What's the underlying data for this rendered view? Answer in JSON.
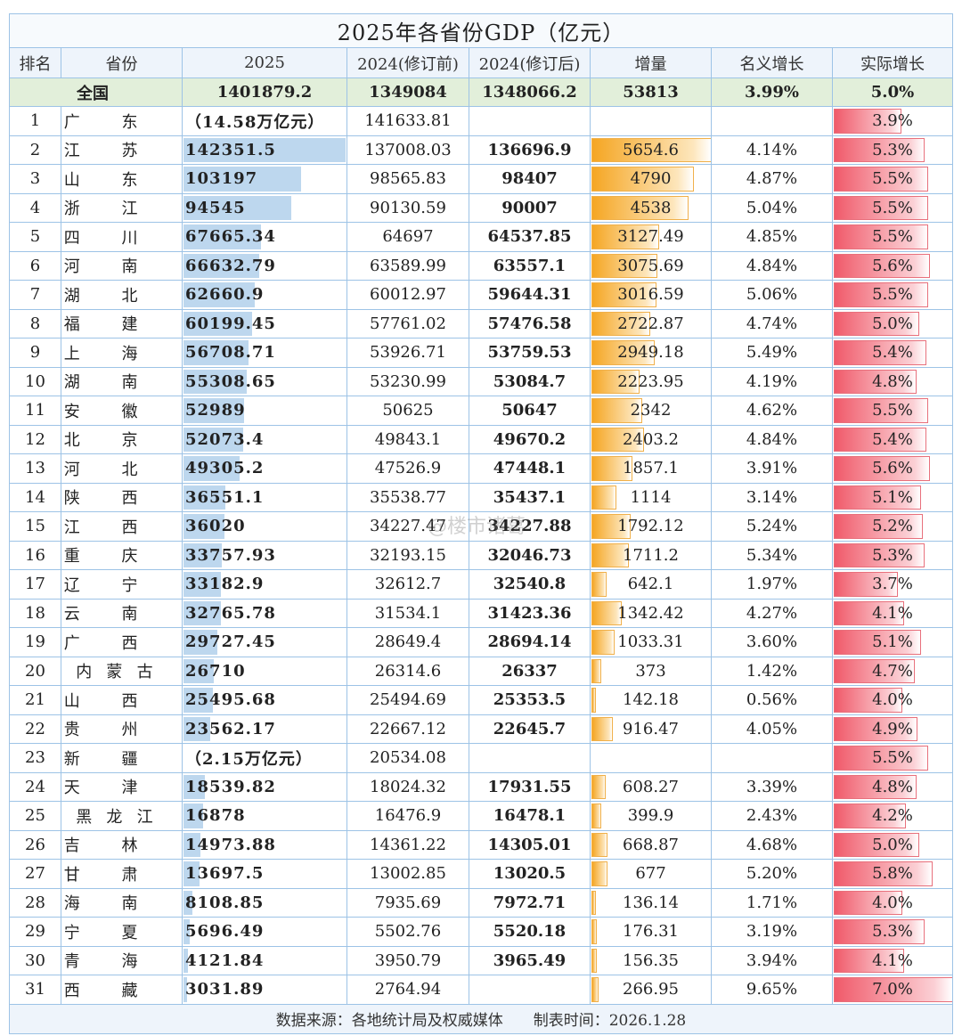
{
  "title": "2025年各省份GDP（亿元）",
  "header": [
    "排名",
    "省份",
    "2025",
    "2024(修订前)",
    "2024(修订后)",
    "增量",
    "名义增长",
    "实际增长"
  ],
  "national": [
    "全国",
    "1401879.2",
    "1349084",
    "1348066.2",
    "53813",
    "3.99%",
    "5.0%"
  ],
  "rows": [
    [
      "1",
      "广东",
      "（14.58万亿元）",
      "141633.81",
      null,
      null,
      null,
      "3.9%"
    ],
    [
      "2",
      "江苏",
      "142351.5",
      "137008.03",
      "136696.9",
      "5654.6",
      "4.14%",
      "5.3%"
    ],
    [
      "3",
      "山东",
      "103197",
      "98565.83",
      "98407",
      "4790",
      "4.87%",
      "5.5%"
    ],
    [
      "4",
      "浙江",
      "94545",
      "90130.59",
      "90007",
      "4538",
      "5.04%",
      "5.5%"
    ],
    [
      "5",
      "四川",
      "67665.34",
      "64697",
      "64537.85",
      "3127.49",
      "4.85%",
      "5.5%"
    ],
    [
      "6",
      "河南",
      "66632.79",
      "63589.99",
      "63557.1",
      "3075.69",
      "4.84%",
      "5.6%"
    ],
    [
      "7",
      "湖北",
      "62660.9",
      "60012.97",
      "59644.31",
      "3016.59",
      "5.06%",
      "5.5%"
    ],
    [
      "8",
      "福建",
      "60199.45",
      "57761.02",
      "57476.58",
      "2722.87",
      "4.74%",
      "5.0%"
    ],
    [
      "9",
      "上海",
      "56708.71",
      "53926.71",
      "53759.53",
      "2949.18",
      "5.49%",
      "5.4%"
    ],
    [
      "10",
      "湖南",
      "55308.65",
      "53230.99",
      "53084.7",
      "2223.95",
      "4.19%",
      "4.8%"
    ],
    [
      "11",
      "安徽",
      "52989",
      "50625",
      "50647",
      "2342",
      "4.62%",
      "5.5%"
    ],
    [
      "12",
      "北京",
      "52073.4",
      "49843.1",
      "49670.2",
      "2403.2",
      "4.84%",
      "5.4%"
    ],
    [
      "13",
      "河北",
      "49305.2",
      "47526.9",
      "47448.1",
      "1857.1",
      "3.91%",
      "5.6%"
    ],
    [
      "14",
      "陕西",
      "36551.1",
      "35538.77",
      "35437.1",
      "1114",
      "3.14%",
      "5.1%"
    ],
    [
      "15",
      "江西",
      "36020",
      "34227.47",
      "34227.88",
      "1792.12",
      "5.24%",
      "5.2%"
    ],
    [
      "16",
      "重庆",
      "33757.93",
      "32193.15",
      "32046.73",
      "1711.2",
      "5.34%",
      "5.3%"
    ],
    [
      "17",
      "辽宁",
      "33182.9",
      "32612.7",
      "32540.8",
      "642.1",
      "1.97%",
      "3.7%"
    ],
    [
      "18",
      "云南",
      "32765.78",
      "31534.1",
      "31423.36",
      "1342.42",
      "4.27%",
      "4.1%"
    ],
    [
      "19",
      "广西",
      "29727.45",
      "28649.4",
      "28694.14",
      "1033.31",
      "3.60%",
      "5.1%"
    ],
    [
      "20",
      "内蒙古",
      "26710",
      "26314.6",
      "26337",
      "373",
      "1.42%",
      "4.7%"
    ],
    [
      "21",
      "山西",
      "25495.68",
      "25494.69",
      "25353.5",
      "142.18",
      "0.56%",
      "4.0%"
    ],
    [
      "22",
      "贵州",
      "23562.17",
      "22667.12",
      "22645.7",
      "916.47",
      "4.05%",
      "4.9%"
    ],
    [
      "23",
      "新疆",
      "（2.15万亿元）",
      "20534.08",
      null,
      null,
      null,
      "5.5%"
    ],
    [
      "24",
      "天津",
      "18539.82",
      "18024.32",
      "17931.55",
      "608.27",
      "3.39%",
      "4.8%"
    ],
    [
      "25",
      "黑龙江",
      "16878",
      "16476.9",
      "16478.1",
      "399.9",
      "2.43%",
      "4.2%"
    ],
    [
      "26",
      "吉林",
      "14973.88",
      "14361.22",
      "14305.01",
      "668.87",
      "4.68%",
      "5.0%"
    ],
    [
      "27",
      "甘肃",
      "13697.5",
      "13002.85",
      "13020.5",
      "677",
      "5.20%",
      "5.8%"
    ],
    [
      "28",
      "海南",
      "8108.85",
      "7935.69",
      "7972.71",
      "136.14",
      "1.71%",
      "4.0%"
    ],
    [
      "29",
      "宁夏",
      "5696.49",
      "5502.76",
      "5520.18",
      "176.31",
      "3.19%",
      "5.3%"
    ],
    [
      "30",
      "青海",
      "4121.84",
      "3950.79",
      "3965.49",
      "156.35",
      "3.94%",
      "4.1%"
    ],
    [
      "31",
      "西藏",
      "3031.89",
      "2764.94",
      null,
      "266.95",
      "9.65%",
      "7.0%"
    ]
  ],
  "footer": "数据来源：各地统计局及权威媒体　　制表时间：2026.1.28",
  "watermark": "@楼市诸葛"
}
